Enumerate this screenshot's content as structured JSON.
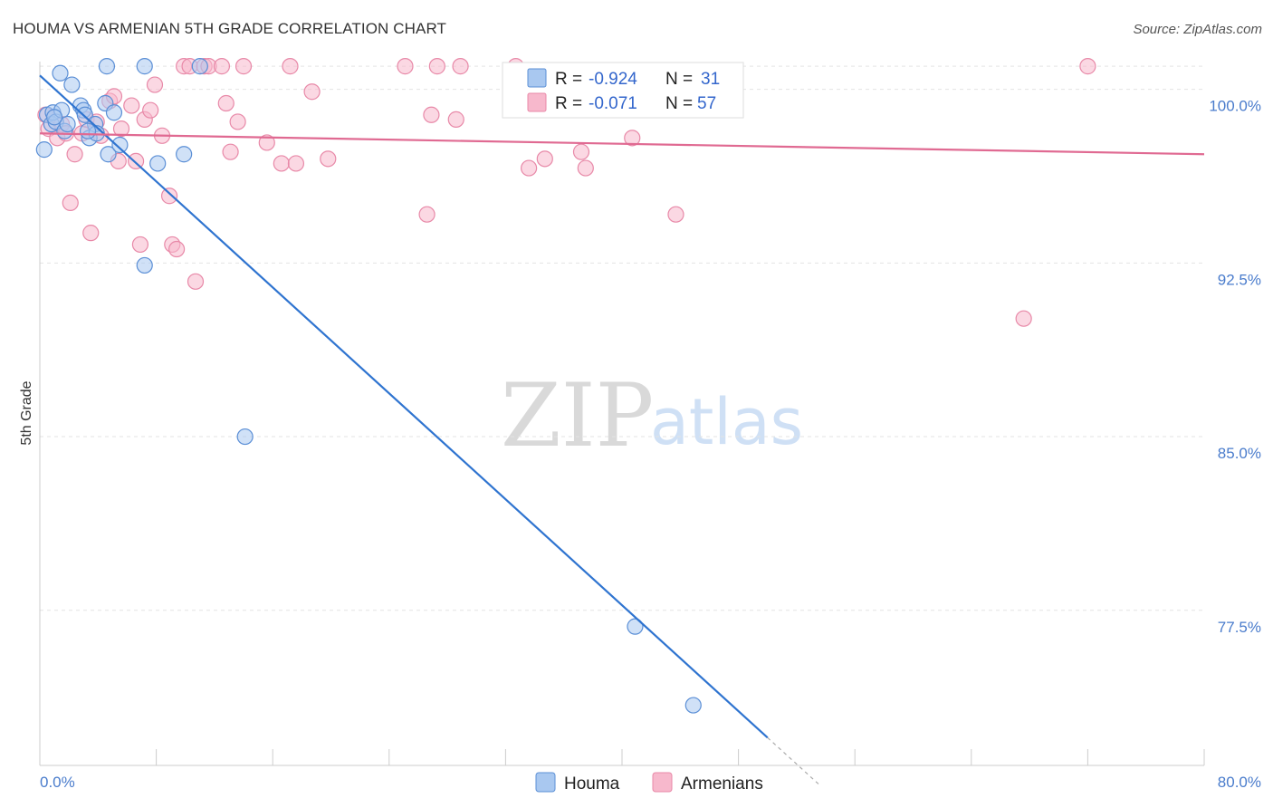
{
  "title": "HOUMA VS ARMENIAN 5TH GRADE CORRELATION CHART",
  "source": "Source: ZipAtlas.com",
  "watermark": {
    "zip": "ZIP",
    "atlas": "atlas"
  },
  "colors": {
    "houma_fill": "#a9c8f0",
    "houma_stroke": "#5b8fd6",
    "houma_line": "#2f74d0",
    "armenian_fill": "#f7b8cc",
    "armenian_stroke": "#e889a8",
    "armenian_line": "#e06a92",
    "grid": "#e3e3e3",
    "axis_text": "#4a7ccc"
  },
  "legend": {
    "rows": [
      {
        "r_label": "R =",
        "r_value": "-0.924",
        "n_label": "N =",
        "n_value": "31"
      },
      {
        "r_label": "R =",
        "r_value": "-0.071",
        "n_label": "N =",
        "n_value": "57"
      }
    ]
  },
  "chart_data": {
    "type": "scatter",
    "title": "HOUMA VS ARMENIAN 5TH GRADE CORRELATION CHART",
    "xlabel": "",
    "ylabel": "5th Grade",
    "xlim": [
      0,
      80
    ],
    "ylim": [
      70.8,
      101.2
    ],
    "x_tick_labels": [
      "0.0%",
      "80.0%"
    ],
    "y_ticks": [
      100,
      92.5,
      85,
      77.5
    ],
    "y_tick_labels": [
      "100.0%",
      "92.5%",
      "85.0%",
      "77.5%"
    ],
    "legend_position": "bottom-center",
    "series": [
      {
        "name": "Houma",
        "R": -0.924,
        "N": 31,
        "trend": {
          "x0": 0,
          "y0": 100.6,
          "x1": 50.0,
          "y1": 72.0,
          "dash_to_x": 53.5
        },
        "points": [
          [
            0.3,
            97.4
          ],
          [
            0.5,
            98.9
          ],
          [
            0.8,
            98.5
          ],
          [
            0.9,
            99.0
          ],
          [
            1.1,
            98.6
          ],
          [
            1.4,
            100.7
          ],
          [
            1.5,
            99.1
          ],
          [
            1.7,
            98.2
          ],
          [
            1.9,
            98.5
          ],
          [
            2.2,
            100.2
          ],
          [
            2.8,
            99.3
          ],
          [
            3.0,
            99.1
          ],
          [
            3.1,
            98.9
          ],
          [
            3.4,
            97.9
          ],
          [
            3.8,
            98.5
          ],
          [
            3.9,
            98.1
          ],
          [
            4.5,
            99.4
          ],
          [
            4.6,
            101.0
          ],
          [
            4.7,
            97.2
          ],
          [
            5.1,
            99.0
          ],
          [
            5.5,
            97.6
          ],
          [
            7.2,
            101.0
          ],
          [
            8.1,
            96.8
          ],
          [
            7.2,
            92.4
          ],
          [
            9.9,
            97.2
          ],
          [
            11.0,
            101.0
          ],
          [
            14.1,
            85.0
          ],
          [
            40.9,
            76.8
          ],
          [
            44.9,
            73.4
          ],
          [
            1.0,
            98.8
          ],
          [
            3.3,
            98.2
          ]
        ]
      },
      {
        "name": "Armenians",
        "R": -0.071,
        "N": 57,
        "trend": {
          "x0": 0,
          "y0": 98.1,
          "x1": 80,
          "y1": 97.2
        },
        "points": [
          [
            0.4,
            98.9
          ],
          [
            0.6,
            98.3
          ],
          [
            1.2,
            97.9
          ],
          [
            1.5,
            98.5
          ],
          [
            2.1,
            95.1
          ],
          [
            2.4,
            97.2
          ],
          [
            2.9,
            98.1
          ],
          [
            3.2,
            98.7
          ],
          [
            3.5,
            93.8
          ],
          [
            3.9,
            98.6
          ],
          [
            4.2,
            98.0
          ],
          [
            4.8,
            99.5
          ],
          [
            5.1,
            99.7
          ],
          [
            5.4,
            96.9
          ],
          [
            5.6,
            98.3
          ],
          [
            6.3,
            99.3
          ],
          [
            6.6,
            96.9
          ],
          [
            6.9,
            93.3
          ],
          [
            7.2,
            98.7
          ],
          [
            7.6,
            99.1
          ],
          [
            7.9,
            100.2
          ],
          [
            8.4,
            98.0
          ],
          [
            8.9,
            95.4
          ],
          [
            9.1,
            93.3
          ],
          [
            9.4,
            93.1
          ],
          [
            9.9,
            101.0
          ],
          [
            10.3,
            101.0
          ],
          [
            10.7,
            91.7
          ],
          [
            11.3,
            101.0
          ],
          [
            11.6,
            101.0
          ],
          [
            12.5,
            101.0
          ],
          [
            12.8,
            99.4
          ],
          [
            13.1,
            97.3
          ],
          [
            13.6,
            98.6
          ],
          [
            14.0,
            101.0
          ],
          [
            15.6,
            97.7
          ],
          [
            16.6,
            96.8
          ],
          [
            17.2,
            101.0
          ],
          [
            17.6,
            96.8
          ],
          [
            18.7,
            99.9
          ],
          [
            19.8,
            97.0
          ],
          [
            25.1,
            101.0
          ],
          [
            26.6,
            94.6
          ],
          [
            26.9,
            98.9
          ],
          [
            27.3,
            101.0
          ],
          [
            28.6,
            98.7
          ],
          [
            28.9,
            101.0
          ],
          [
            32.7,
            101.0
          ],
          [
            33.6,
            96.6
          ],
          [
            34.7,
            97.0
          ],
          [
            37.2,
            97.3
          ],
          [
            37.5,
            96.6
          ],
          [
            40.7,
            97.9
          ],
          [
            43.7,
            94.6
          ],
          [
            67.6,
            90.1
          ],
          [
            72.0,
            101.0
          ],
          [
            1.8,
            98.1
          ]
        ]
      }
    ]
  },
  "bottom_legend": [
    {
      "label": "Houma"
    },
    {
      "label": "Armenians"
    }
  ]
}
